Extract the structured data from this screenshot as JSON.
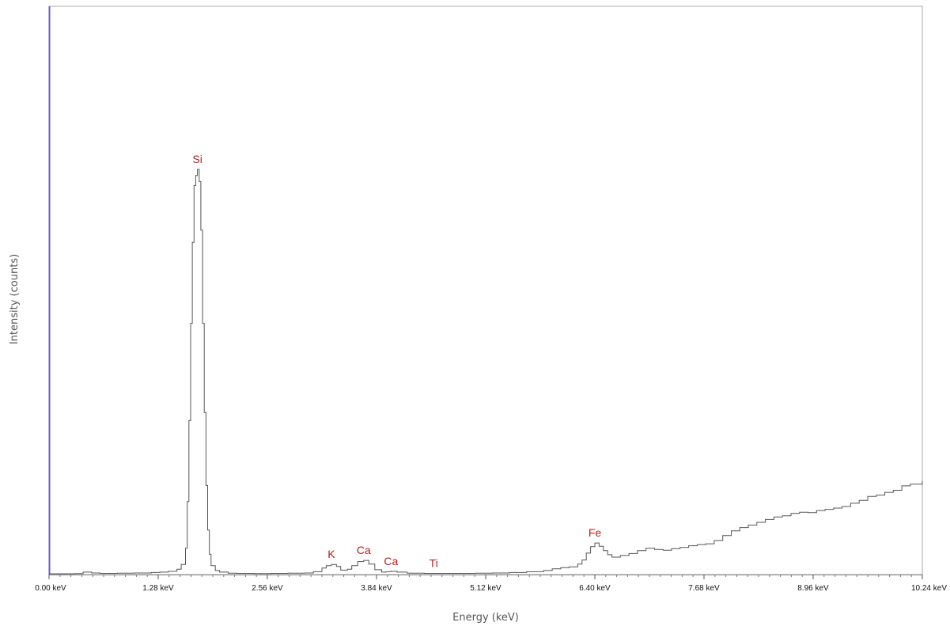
{
  "chart_data": {
    "type": "line",
    "title": "",
    "xlabel": "Energy (keV)",
    "ylabel": "Intensity (counts)",
    "xlim": [
      0,
      10.24
    ],
    "ylim": [
      0,
      100
    ],
    "grid": false,
    "legend": "none",
    "x_ticks": [
      {
        "value": 0.0,
        "label": "0.00 keV"
      },
      {
        "value": 1.28,
        "label": "1.28 keV"
      },
      {
        "value": 2.56,
        "label": "2.56 keV"
      },
      {
        "value": 3.84,
        "label": "3.84 keV"
      },
      {
        "value": 5.12,
        "label": "5.12 keV"
      },
      {
        "value": 6.4,
        "label": "6.40 keV"
      },
      {
        "value": 7.68,
        "label": "7.68 keV"
      },
      {
        "value": 8.96,
        "label": "8.96 keV"
      },
      {
        "value": 10.24,
        "label": "10.24 keV"
      }
    ],
    "peak_labels": [
      {
        "element": "Si",
        "x": 1.74,
        "y": 100
      },
      {
        "element": "K",
        "x": 3.31,
        "y": 2.5
      },
      {
        "element": "Ca",
        "x": 3.69,
        "y": 3.5
      },
      {
        "element": "Ca",
        "x": 4.01,
        "y": 0.8
      },
      {
        "element": "Ti",
        "x": 4.51,
        "y": 0.3
      },
      {
        "element": "Fe",
        "x": 6.4,
        "y": 7.8
      }
    ],
    "series": [
      {
        "x": [
          0.0,
          0.1,
          0.2,
          0.3,
          0.4,
          0.5,
          0.6,
          0.7,
          0.8,
          0.9,
          1.0,
          1.1,
          1.2,
          1.3,
          1.4,
          1.5,
          1.55,
          1.6,
          1.62,
          1.64,
          1.66,
          1.68,
          1.7,
          1.72,
          1.74,
          1.76,
          1.78,
          1.8,
          1.82,
          1.84,
          1.86,
          1.88,
          1.9,
          1.95,
          2.0,
          2.1,
          2.2,
          2.4,
          2.6,
          2.8,
          3.0,
          3.1,
          3.2,
          3.25,
          3.31,
          3.37,
          3.42,
          3.5,
          3.55,
          3.62,
          3.69,
          3.75,
          3.82,
          3.9,
          3.95,
          4.01,
          4.08,
          4.2,
          4.4,
          4.51,
          4.6,
          4.8,
          5.0,
          5.2,
          5.4,
          5.6,
          5.8,
          5.9,
          6.0,
          6.1,
          6.2,
          6.25,
          6.3,
          6.35,
          6.4,
          6.45,
          6.5,
          6.55,
          6.6,
          6.7,
          6.8,
          6.9,
          7.0,
          7.1,
          7.2,
          7.3,
          7.4,
          7.5,
          7.6,
          7.7,
          7.8,
          7.9,
          8.0,
          8.1,
          8.2,
          8.3,
          8.4,
          8.5,
          8.6,
          8.7,
          8.8,
          8.9,
          9.0,
          9.1,
          9.2,
          9.3,
          9.4,
          9.5,
          9.6,
          9.7,
          9.8,
          9.9,
          10.0,
          10.1,
          10.24
        ],
        "values": [
          0.2,
          0.2,
          0.2,
          0.25,
          0.6,
          0.4,
          0.3,
          0.3,
          0.35,
          0.35,
          0.4,
          0.4,
          0.5,
          0.6,
          0.8,
          1.3,
          2.5,
          6.5,
          18,
          38,
          62,
          82,
          96,
          98.5,
          100,
          97,
          85,
          62,
          40,
          22,
          11,
          5,
          2.2,
          1.0,
          0.6,
          0.35,
          0.3,
          0.25,
          0.3,
          0.35,
          0.4,
          0.7,
          1.6,
          2.2,
          2.5,
          2.0,
          1.1,
          1.3,
          2.2,
          3.2,
          3.5,
          2.6,
          1.2,
          0.6,
          0.7,
          0.8,
          0.6,
          0.35,
          0.3,
          0.3,
          0.3,
          0.3,
          0.35,
          0.4,
          0.5,
          0.7,
          1.0,
          1.4,
          1.7,
          1.9,
          2.6,
          3.6,
          5.3,
          6.9,
          7.8,
          7.0,
          5.9,
          4.9,
          4.3,
          4.7,
          5.2,
          5.9,
          6.5,
          6.2,
          6.0,
          6.4,
          6.7,
          7.1,
          7.4,
          7.6,
          8.4,
          9.6,
          10.8,
          11.6,
          12.2,
          12.9,
          13.6,
          14.2,
          14.5,
          15.1,
          15.4,
          15.3,
          15.8,
          16.1,
          16.4,
          16.8,
          17.6,
          18.3,
          19.3,
          19.6,
          20.3,
          20.8,
          21.9,
          22.3,
          23.1
        ]
      }
    ],
    "colors": {
      "line": "#555555",
      "frame": "#aaaaaa",
      "left_axis": "#6a5acd",
      "peak_label": "#b22222"
    }
  }
}
